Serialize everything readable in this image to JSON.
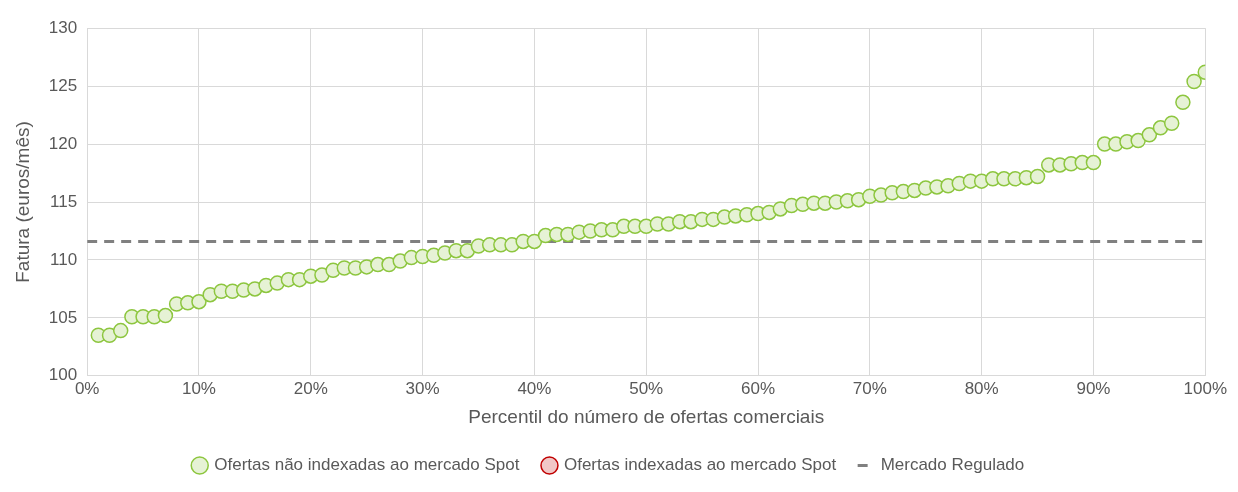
{
  "chart_data": {
    "type": "scatter",
    "xlabel": "Percentil do número de ofertas comerciais",
    "ylabel": "Fatura (euros/mês)",
    "x": [
      1,
      2,
      3,
      4,
      5,
      6,
      7,
      8,
      9,
      10,
      11,
      12,
      13,
      14,
      15,
      16,
      17,
      18,
      19,
      20,
      21,
      22,
      23,
      24,
      25,
      26,
      27,
      28,
      29,
      30,
      31,
      32,
      33,
      34,
      35,
      36,
      37,
      38,
      39,
      40,
      41,
      42,
      43,
      44,
      45,
      46,
      47,
      48,
      49,
      50,
      51,
      52,
      53,
      54,
      55,
      56,
      57,
      58,
      59,
      60,
      61,
      62,
      63,
      64,
      65,
      66,
      67,
      68,
      69,
      70,
      71,
      72,
      73,
      74,
      75,
      76,
      77,
      78,
      79,
      80,
      81,
      82,
      83,
      84,
      85,
      86,
      87,
      88,
      89,
      90,
      91,
      92,
      93,
      94,
      95,
      96,
      97,
      98,
      99,
      100
    ],
    "series": [
      {
        "name": "Ofertas não indexadas ao mercado Spot",
        "color": "#8dc63f",
        "values": [
          103.5,
          103.5,
          103.9,
          105.1,
          105.1,
          105.1,
          105.2,
          106.2,
          106.3,
          106.4,
          107.0,
          107.3,
          107.3,
          107.4,
          107.5,
          107.8,
          108.0,
          108.3,
          108.3,
          108.6,
          108.7,
          109.1,
          109.3,
          109.3,
          109.4,
          109.6,
          109.6,
          109.9,
          110.2,
          110.3,
          110.4,
          110.6,
          110.8,
          110.8,
          111.2,
          111.3,
          111.3,
          111.3,
          111.6,
          111.6,
          112.1,
          112.2,
          112.2,
          112.4,
          112.5,
          112.6,
          112.6,
          112.9,
          112.9,
          112.9,
          113.1,
          113.1,
          113.3,
          113.3,
          113.5,
          113.5,
          113.7,
          113.8,
          113.9,
          114.0,
          114.1,
          114.4,
          114.7,
          114.8,
          114.9,
          114.9,
          115.0,
          115.1,
          115.2,
          115.5,
          115.6,
          115.8,
          115.9,
          116.0,
          116.2,
          116.3,
          116.4,
          116.6,
          116.8,
          116.8,
          117.0,
          117.0,
          117.0,
          117.1,
          117.2,
          118.2,
          118.2,
          118.3,
          118.4,
          118.4,
          120.0,
          120.0,
          120.2,
          120.3,
          120.8,
          121.4,
          121.8,
          123.6,
          125.4,
          126.2
        ]
      },
      {
        "name": "Ofertas indexadas ao mercado Spot",
        "color": "#c00000",
        "values": [
          null,
          null,
          null,
          null,
          null,
          null,
          null,
          null,
          null,
          null,
          null,
          null,
          null,
          null,
          null,
          null,
          null,
          null,
          null,
          null,
          null,
          null,
          null,
          null,
          null,
          null,
          null,
          null,
          null,
          null,
          null,
          null,
          null,
          null,
          null,
          null,
          null,
          null,
          null,
          null,
          null,
          null,
          null,
          null,
          null,
          null,
          null,
          null,
          null,
          null,
          null,
          null,
          null,
          null,
          null,
          null,
          null,
          null,
          null,
          null,
          null,
          null,
          null,
          null,
          null,
          null,
          null,
          null,
          null,
          null,
          null,
          null,
          null,
          null,
          null,
          null,
          null,
          null,
          null,
          null,
          null,
          null,
          null,
          null,
          null,
          null,
          null,
          null,
          null,
          null,
          null,
          null,
          null,
          null,
          null,
          null,
          null,
          null,
          null,
          null
        ]
      }
    ],
    "ref_lines": [
      {
        "axis": "y",
        "value": 111.6,
        "label": "Mercado Regulado",
        "color": "#808080",
        "line_style": "dashed"
      }
    ],
    "xlim": [
      0,
      100
    ],
    "xticks": [
      {
        "value": 0,
        "label": "0%"
      },
      {
        "value": 10,
        "label": "10%"
      },
      {
        "value": 20,
        "label": "20%"
      },
      {
        "value": 30,
        "label": "30%"
      },
      {
        "value": 40,
        "label": "40%"
      },
      {
        "value": 50,
        "label": "50%"
      },
      {
        "value": 60,
        "label": "60%"
      },
      {
        "value": 70,
        "label": "70%"
      },
      {
        "value": 80,
        "label": "80%"
      },
      {
        "value": 90,
        "label": "90%"
      },
      {
        "value": 100,
        "label": "100%"
      }
    ],
    "ylim": [
      100,
      130
    ],
    "yticks": [
      100,
      105,
      110,
      115,
      120,
      125,
      130
    ],
    "grid": true,
    "legend": "bottom",
    "marker": "circle"
  }
}
